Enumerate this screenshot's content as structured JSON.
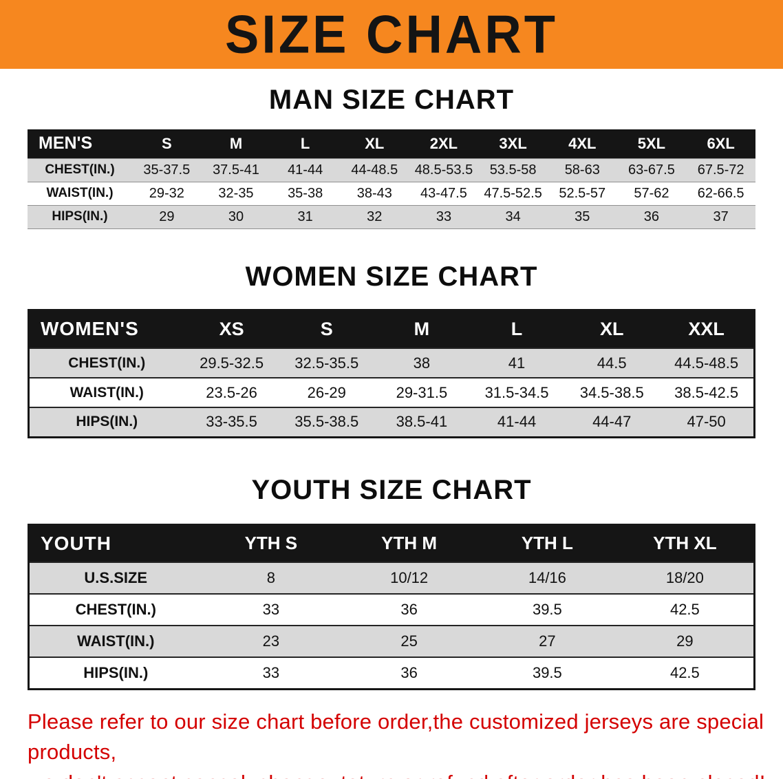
{
  "banner": {
    "title": "SIZE CHART",
    "bg_color": "#f6871f",
    "text_color": "#141414"
  },
  "sections": [
    {
      "heading": "MAN SIZE CHART",
      "table": {
        "header": [
          "MEN'S",
          "S",
          "M",
          "L",
          "XL",
          "2XL",
          "3XL",
          "4XL",
          "5XL",
          "6XL"
        ],
        "rows": [
          [
            "CHEST(IN.)",
            "35-37.5",
            "37.5-41",
            "41-44",
            "44-48.5",
            "48.5-53.5",
            "53.5-58",
            "58-63",
            "63-67.5",
            "67.5-72"
          ],
          [
            "WAIST(IN.)",
            "29-32",
            "32-35",
            "35-38",
            "38-43",
            "43-47.5",
            "47.5-52.5",
            "52.5-57",
            "57-62",
            "62-66.5"
          ],
          [
            "HIPS(IN.)",
            "29",
            "30",
            "31",
            "32",
            "33",
            "34",
            "35",
            "36",
            "37"
          ]
        ]
      }
    },
    {
      "heading": "WOMEN SIZE CHART",
      "table": {
        "header": [
          "WOMEN'S",
          "XS",
          "S",
          "M",
          "L",
          "XL",
          "XXL"
        ],
        "rows": [
          [
            "CHEST(IN.)",
            "29.5-32.5",
            "32.5-35.5",
            "38",
            "41",
            "44.5",
            "44.5-48.5"
          ],
          [
            "WAIST(IN.)",
            "23.5-26",
            "26-29",
            "29-31.5",
            "31.5-34.5",
            "34.5-38.5",
            "38.5-42.5"
          ],
          [
            "HIPS(IN.)",
            "33-35.5",
            "35.5-38.5",
            "38.5-41",
            "41-44",
            "44-47",
            "47-50"
          ]
        ]
      }
    },
    {
      "heading": "YOUTH SIZE CHART",
      "table": {
        "header": [
          "YOUTH",
          "YTH S",
          "YTH M",
          "YTH L",
          "YTH XL"
        ],
        "rows": [
          [
            "U.S.SIZE",
            "8",
            "10/12",
            "14/16",
            "18/20"
          ],
          [
            "CHEST(IN.)",
            "33",
            "36",
            "39.5",
            "42.5"
          ],
          [
            "WAIST(IN.)",
            "23",
            "25",
            "27",
            "29"
          ],
          [
            "HIPS(IN.)",
            "33",
            "36",
            "39.5",
            "42.5"
          ]
        ]
      }
    }
  ],
  "footer_note": {
    "color": "#d40000",
    "lines": [
      "Please refer to our size chart before order,the customized jerseys are special products,",
      "we don't accept cancel, change, teturn or refund after order has been placed!"
    ]
  }
}
